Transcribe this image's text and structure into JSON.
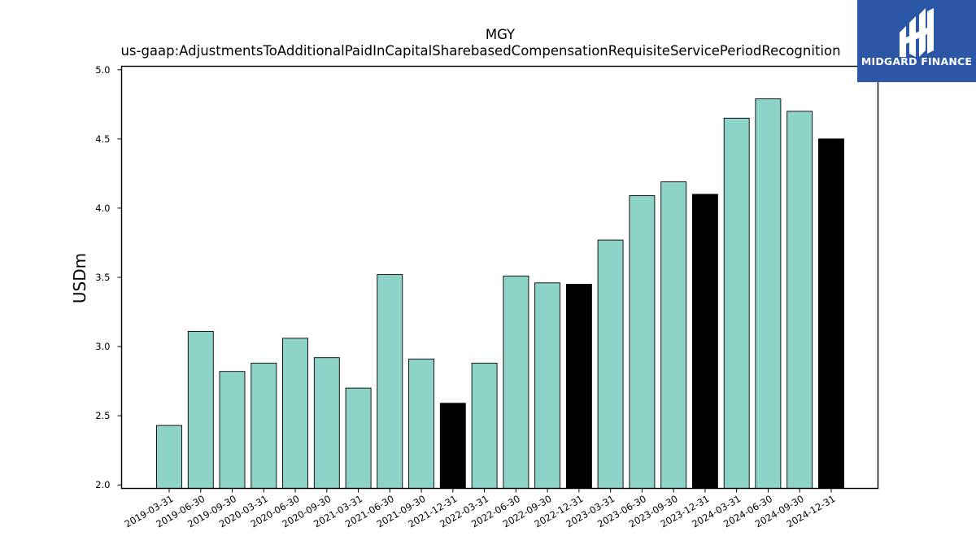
{
  "chart_data": {
    "type": "bar",
    "title": "MGY",
    "subtitle": "us-gaap:AdjustmentsToAdditionalPaidInCapitalSharebasedCompensationRequisiteServicePeriodRecognition",
    "xlabel": "",
    "ylabel": "USDm",
    "ylim": [
      1.975,
      5.025
    ],
    "yticks": [
      "2.0",
      "2.5",
      "3.0",
      "3.5",
      "4.0",
      "4.5",
      "5.0"
    ],
    "grid": false,
    "legend": "none",
    "categories": [
      "2019-03-31",
      "2019-06-30",
      "2019-09-30",
      "2020-03-31",
      "2020-06-30",
      "2020-09-30",
      "2021-03-31",
      "2021-06-30",
      "2021-09-30",
      "2021-12-31",
      "2022-03-31",
      "2022-06-30",
      "2022-09-30",
      "2022-12-31",
      "2023-03-31",
      "2023-06-30",
      "2023-09-30",
      "2023-12-31",
      "2024-03-31",
      "2024-06-30",
      "2024-09-30",
      "2024-12-31"
    ],
    "values": [
      2.43,
      3.11,
      2.82,
      2.88,
      3.06,
      2.92,
      2.7,
      3.52,
      2.91,
      2.59,
      2.88,
      3.51,
      3.46,
      3.45,
      3.77,
      4.09,
      4.19,
      4.1,
      4.65,
      4.79,
      4.7,
      4.5
    ],
    "highlight": [
      false,
      false,
      false,
      false,
      false,
      false,
      false,
      false,
      false,
      true,
      false,
      false,
      false,
      true,
      false,
      false,
      false,
      true,
      false,
      false,
      false,
      true
    ],
    "colors": {
      "bar": "#8dd3c7",
      "highlight": "#000000",
      "edge": "#000000"
    }
  },
  "logo": {
    "text": "MIDGARD FINANCE",
    "background": "#2b57a6"
  }
}
